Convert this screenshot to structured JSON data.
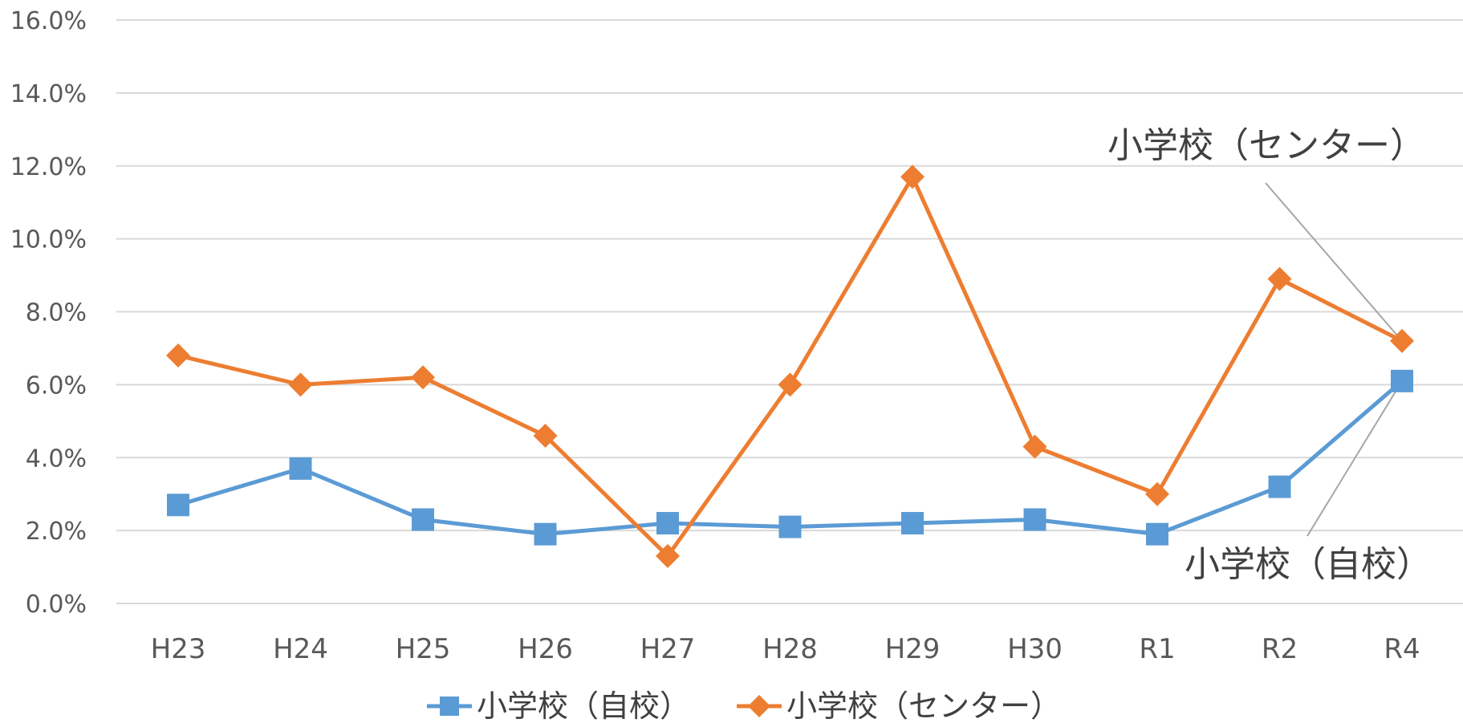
{
  "chart_data": {
    "type": "line",
    "categories": [
      "H23",
      "H24",
      "H25",
      "H26",
      "H27",
      "H28",
      "H29",
      "H30",
      "R1",
      "R2",
      "R4"
    ],
    "y_ticks": [
      "0.0%",
      "2.0%",
      "4.0%",
      "6.0%",
      "8.0%",
      "10.0%",
      "12.0%",
      "14.0%",
      "16.0%"
    ],
    "ylim": [
      0,
      16
    ],
    "grid": true,
    "legend_position": "bottom",
    "series": [
      {
        "name": "小学校（自校）",
        "color": "#5b9bd5",
        "marker": "square",
        "values": [
          2.7,
          3.7,
          2.3,
          1.9,
          2.2,
          2.1,
          2.2,
          2.3,
          1.9,
          3.2,
          6.1
        ]
      },
      {
        "name": "小学校（センター）",
        "color": "#ed7d31",
        "marker": "diamond",
        "values": [
          6.8,
          6.0,
          6.2,
          4.6,
          1.3,
          6.0,
          11.7,
          4.3,
          3.0,
          8.9,
          7.2
        ]
      }
    ],
    "annotations": [
      {
        "text": "小学校（センター）",
        "series": 1,
        "category": "R4"
      },
      {
        "text": "小学校（自校）",
        "series": 0,
        "category": "R4"
      }
    ]
  }
}
